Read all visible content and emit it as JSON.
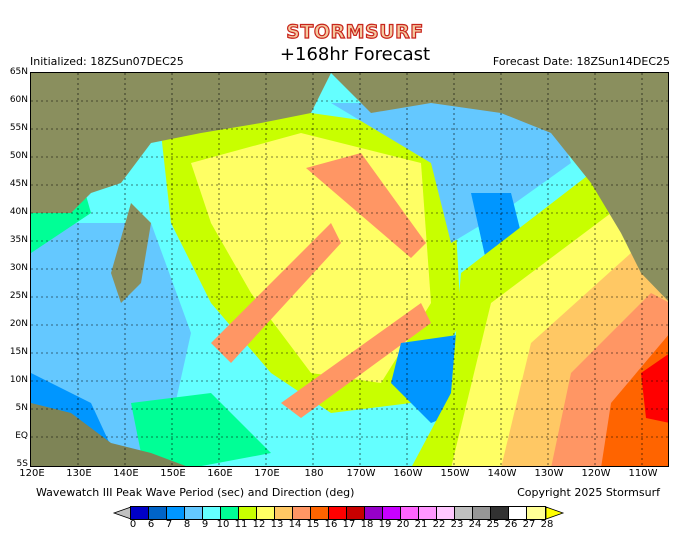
{
  "header": {
    "logo": "STORMSURF",
    "subtitle": "+168hr Forecast",
    "initialized": "Initialized: 18ZSun07DEC25",
    "forecast_date": "Forecast Date: 18ZSun14DEC25"
  },
  "map": {
    "lat_labels": [
      "65N",
      "60N",
      "55N",
      "50N",
      "45N",
      "40N",
      "35N",
      "30N",
      "25N",
      "20N",
      "15N",
      "10N",
      "5N",
      "EQ",
      "5S"
    ],
    "lon_labels": [
      "120E",
      "130E",
      "140E",
      "150E",
      "160E",
      "170E",
      "180",
      "170W",
      "160W",
      "150W",
      "140W",
      "130W",
      "120W",
      "110W"
    ],
    "land_color": "#8a8f5e"
  },
  "footer": {
    "caption": "Wavewatch III Peak Wave Period (sec) and Direction (deg)",
    "copyright": "Copyright 2025 Stormsurf"
  },
  "colorbar": {
    "labels": [
      "0",
      "6",
      "7",
      "8",
      "9",
      "10",
      "11",
      "12",
      "13",
      "14",
      "15",
      "16",
      "17",
      "18",
      "19",
      "20",
      "21",
      "22",
      "23",
      "24",
      "25",
      "26",
      "27",
      "28"
    ],
    "colors": [
      "#0000c8",
      "#0064c8",
      "#0096ff",
      "#64c8ff",
      "#64ffff",
      "#00ff96",
      "#c8ff00",
      "#ffff64",
      "#ffc864",
      "#ff9664",
      "#ff6400",
      "#ff0000",
      "#c80000",
      "#9600c8",
      "#c800ff",
      "#ff64ff",
      "#ff96ff",
      "#ffc8ff",
      "#c0c0c0",
      "#969696",
      "#323232",
      "#ffffff",
      "#ffff96"
    ]
  }
}
